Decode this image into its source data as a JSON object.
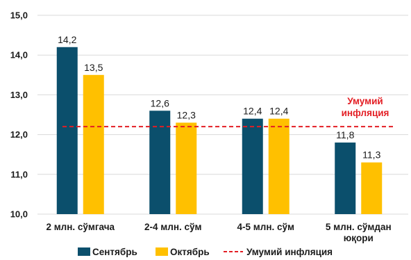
{
  "chart_data": {
    "type": "bar",
    "categories": [
      [
        "2 млн. сўмгача"
      ],
      [
        "2-4 млн. сўм"
      ],
      [
        "4-5 млн. сўм"
      ],
      [
        "5 млн. сўмдан",
        "юқори"
      ]
    ],
    "series": [
      {
        "name": "Сентябрь",
        "values": [
          "14,2",
          "12,6",
          "12,4",
          "11,8"
        ],
        "color": "#0b4f6c"
      },
      {
        "name": "Октябрь",
        "values": [
          "13,5",
          "12,3",
          "12,4",
          "11,3"
        ],
        "color": "#ffc000"
      }
    ],
    "reference_line": {
      "name": "Умумий инфляция",
      "value": 12.2,
      "color": "#e31e24",
      "style": "dashed"
    },
    "annotation": [
      "Умумий",
      "инфляция"
    ],
    "ylim": [
      10,
      15
    ],
    "yticks": [
      "10,0",
      "11,0",
      "12,0",
      "13,0",
      "14,0",
      "15,0"
    ],
    "legend_position": "bottom",
    "grid": true
  }
}
